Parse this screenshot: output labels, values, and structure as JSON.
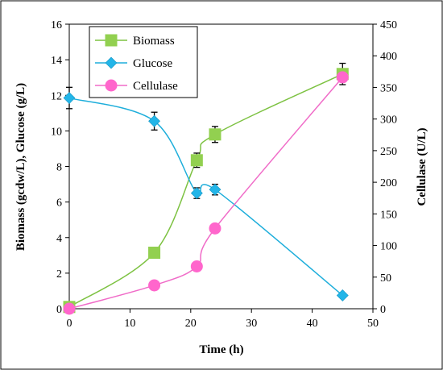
{
  "chart_data": {
    "type": "line",
    "xlabel": "Time (h)",
    "ylabel_left": "Biomass (gcdw/L), Glucose (g/L)",
    "ylabel_right": "Cellulase (U/L)",
    "xlim": [
      0,
      50
    ],
    "ylim_left": [
      0,
      16
    ],
    "ylim_right": [
      0,
      450
    ],
    "x_ticks": [
      "0",
      "10",
      "20",
      "30",
      "40",
      "50"
    ],
    "y_left_ticks": [
      "0",
      "2",
      "4",
      "6",
      "8",
      "10",
      "12",
      "14",
      "16"
    ],
    "y_right_ticks": [
      "0",
      "50",
      "100",
      "150",
      "200",
      "250",
      "300",
      "350",
      "400",
      "450"
    ],
    "legend_position": "top-left",
    "grid": false,
    "series": [
      {
        "name": "Biomass",
        "axis": "left",
        "marker": "square",
        "color": "#7DC242",
        "marker_color": "#92D050",
        "x": [
          0,
          14,
          21,
          24,
          45
        ],
        "y": [
          0.1,
          3.15,
          8.35,
          9.8,
          13.2
        ],
        "err": [
          0,
          0,
          0.4,
          0.45,
          0.6
        ]
      },
      {
        "name": "Glucose",
        "axis": "left",
        "marker": "diamond",
        "color": "#1EAEDB",
        "marker_color": "#23B5E8",
        "x": [
          0,
          14,
          21,
          24,
          45
        ],
        "y": [
          11.85,
          10.55,
          6.5,
          6.7,
          0.75
        ],
        "err": [
          0.6,
          0.5,
          0.3,
          0.3,
          0
        ]
      },
      {
        "name": "Cellulase",
        "axis": "right",
        "marker": "circle",
        "color": "#F06CC8",
        "marker_color": "#FF66CC",
        "x": [
          0,
          14,
          21,
          24,
          45
        ],
        "y": [
          0,
          37,
          67,
          127,
          366
        ],
        "err": [
          0,
          0,
          0,
          0,
          0
        ]
      }
    ]
  }
}
